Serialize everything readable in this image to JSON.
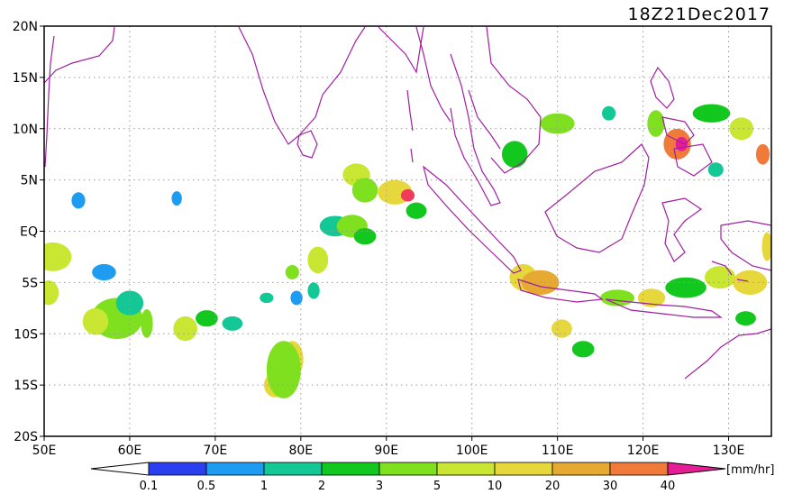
{
  "title": "18Z21Dec2017",
  "lat_labels": [
    "20N",
    "15N",
    "10N",
    "5N",
    "EQ",
    "5S",
    "10S",
    "15S",
    "20S"
  ],
  "lat_values": [
    20,
    15,
    10,
    5,
    0,
    -5,
    -10,
    -15,
    -20
  ],
  "lon_labels": [
    "50E",
    "60E",
    "70E",
    "80E",
    "90E",
    "100E",
    "110E",
    "120E",
    "130E"
  ],
  "lon_values": [
    50,
    60,
    70,
    80,
    90,
    100,
    110,
    120,
    130
  ],
  "extent": {
    "lon_min": 50,
    "lon_max": 135,
    "lat_min": -20,
    "lat_max": 20
  },
  "colorbar": {
    "unit": "[mm/hr]",
    "tick_labels": [
      "0.1",
      "0.5",
      "1",
      "2",
      "3",
      "5",
      "10",
      "20",
      "30",
      "40"
    ],
    "colors": [
      "#2a3ff0",
      "#1e9cf2",
      "#14c896",
      "#12c81e",
      "#7ee01e",
      "#c8e632",
      "#e6d83c",
      "#e6aa32",
      "#f07a3a",
      "#f03c5a",
      "#e61e96"
    ]
  },
  "coast_color": "#a01ea0",
  "grid": true,
  "precip_cells": [
    {
      "lon": 51,
      "lat": -2.5,
      "rx": 2.2,
      "ry": 1.4,
      "level": 5
    },
    {
      "lon": 50.5,
      "lat": -6,
      "rx": 1.2,
      "ry": 1.2,
      "level": 5
    },
    {
      "lon": 54,
      "lat": 3,
      "rx": 0.8,
      "ry": 0.8,
      "level": 1
    },
    {
      "lon": 57,
      "lat": -4,
      "rx": 1.4,
      "ry": 0.8,
      "level": 1
    },
    {
      "lon": 58.5,
      "lat": -8.5,
      "rx": 3,
      "ry": 2,
      "level": 4
    },
    {
      "lon": 56,
      "lat": -8.8,
      "rx": 1.5,
      "ry": 1.3,
      "level": 5
    },
    {
      "lon": 60,
      "lat": -7,
      "rx": 1.6,
      "ry": 1.2,
      "level": 2
    },
    {
      "lon": 62,
      "lat": -9,
      "rx": 0.7,
      "ry": 1.4,
      "level": 4
    },
    {
      "lon": 65.5,
      "lat": 3.2,
      "rx": 0.6,
      "ry": 0.7,
      "level": 1
    },
    {
      "lon": 66.5,
      "lat": -9.5,
      "rx": 1.4,
      "ry": 1.2,
      "level": 5
    },
    {
      "lon": 69,
      "lat": -8.5,
      "rx": 1.3,
      "ry": 0.8,
      "level": 3
    },
    {
      "lon": 72,
      "lat": -9,
      "rx": 1.2,
      "ry": 0.7,
      "level": 2
    },
    {
      "lon": 76,
      "lat": -6.5,
      "rx": 0.8,
      "ry": 0.5,
      "level": 2
    },
    {
      "lon": 79,
      "lat": -4,
      "rx": 0.8,
      "ry": 0.7,
      "level": 4
    },
    {
      "lon": 79.5,
      "lat": -6.5,
      "rx": 0.7,
      "ry": 0.7,
      "level": 1
    },
    {
      "lon": 82,
      "lat": -2.8,
      "rx": 1.2,
      "ry": 1.3,
      "level": 5
    },
    {
      "lon": 81.5,
      "lat": -5.8,
      "rx": 0.7,
      "ry": 0.8,
      "level": 2
    },
    {
      "lon": 79,
      "lat": -12.5,
      "rx": 1.3,
      "ry": 1.8,
      "level": 6
    },
    {
      "lon": 77,
      "lat": -15,
      "rx": 1.3,
      "ry": 1.2,
      "level": 6
    },
    {
      "lon": 78,
      "lat": -13.5,
      "rx": 2,
      "ry": 2.8,
      "level": 4
    },
    {
      "lon": 84,
      "lat": 0.5,
      "rx": 1.8,
      "ry": 1,
      "level": 2
    },
    {
      "lon": 86,
      "lat": 0.5,
      "rx": 1.8,
      "ry": 1.1,
      "level": 4
    },
    {
      "lon": 87.5,
      "lat": -0.5,
      "rx": 1.3,
      "ry": 0.8,
      "level": 3
    },
    {
      "lon": 86.5,
      "lat": 5.5,
      "rx": 1.6,
      "ry": 1.1,
      "level": 5
    },
    {
      "lon": 87.5,
      "lat": 4,
      "rx": 1.5,
      "ry": 1.2,
      "level": 4
    },
    {
      "lon": 91,
      "lat": 3.8,
      "rx": 2,
      "ry": 1.2,
      "level": 6
    },
    {
      "lon": 92.5,
      "lat": 3.5,
      "rx": 0.8,
      "ry": 0.6,
      "level": 9
    },
    {
      "lon": 93.5,
      "lat": 2,
      "rx": 1.2,
      "ry": 0.8,
      "level": 3
    },
    {
      "lon": 106,
      "lat": -4.5,
      "rx": 1.6,
      "ry": 1.3,
      "level": 6
    },
    {
      "lon": 108,
      "lat": -5,
      "rx": 2.2,
      "ry": 1.2,
      "level": 7
    },
    {
      "lon": 110.5,
      "lat": -9.5,
      "rx": 1.2,
      "ry": 0.9,
      "level": 6
    },
    {
      "lon": 105,
      "lat": 7.5,
      "rx": 1.5,
      "ry": 1.3,
      "level": 3
    },
    {
      "lon": 110,
      "lat": 10.5,
      "rx": 2,
      "ry": 1,
      "level": 4
    },
    {
      "lon": 116,
      "lat": 11.5,
      "rx": 0.8,
      "ry": 0.7,
      "level": 2
    },
    {
      "lon": 117,
      "lat": -6.5,
      "rx": 2,
      "ry": 0.8,
      "level": 4
    },
    {
      "lon": 121,
      "lat": -6.5,
      "rx": 1.6,
      "ry": 0.9,
      "level": 6
    },
    {
      "lon": 125,
      "lat": -5.5,
      "rx": 2.4,
      "ry": 1,
      "level": 3
    },
    {
      "lon": 129,
      "lat": -4.5,
      "rx": 1.8,
      "ry": 1.1,
      "level": 5
    },
    {
      "lon": 132.5,
      "lat": -5,
      "rx": 2,
      "ry": 1.2,
      "level": 6
    },
    {
      "lon": 132,
      "lat": -8.5,
      "rx": 1.2,
      "ry": 0.7,
      "level": 3
    },
    {
      "lon": 124,
      "lat": 8.5,
      "rx": 1.6,
      "ry": 1.5,
      "level": 8
    },
    {
      "lon": 124.5,
      "lat": 8.5,
      "rx": 0.7,
      "ry": 0.7,
      "level": 10
    },
    {
      "lon": 121.5,
      "lat": 10.5,
      "rx": 1,
      "ry": 1.3,
      "level": 4
    },
    {
      "lon": 128,
      "lat": 11.5,
      "rx": 2.2,
      "ry": 0.9,
      "level": 3
    },
    {
      "lon": 131.5,
      "lat": 10,
      "rx": 1.4,
      "ry": 1.1,
      "level": 5
    },
    {
      "lon": 134,
      "lat": 7.5,
      "rx": 0.8,
      "ry": 1,
      "level": 8
    },
    {
      "lon": 128.5,
      "lat": 6,
      "rx": 0.9,
      "ry": 0.7,
      "level": 2
    },
    {
      "lon": 134.5,
      "lat": -1.5,
      "rx": 0.6,
      "ry": 1.4,
      "level": 6
    },
    {
      "lon": 113,
      "lat": -11.5,
      "rx": 1.3,
      "ry": 0.8,
      "level": 3
    }
  ]
}
